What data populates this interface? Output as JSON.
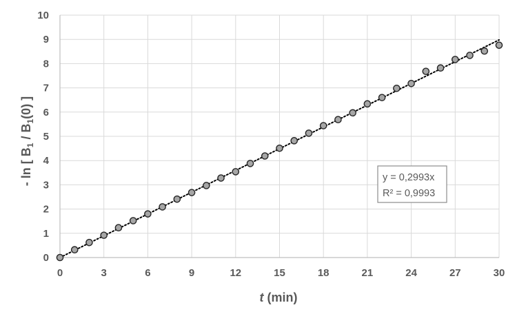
{
  "chart_data": {
    "type": "scatter",
    "title": "",
    "xlabel": {
      "italic": "t",
      "rest": " (min)"
    },
    "ylabel": {
      "p1": "- ln [ B",
      "sub1": "1",
      "p2": " / B",
      "sub2": "1",
      "p3": "(0) ]"
    },
    "xlim": [
      0,
      30
    ],
    "ylim": [
      0,
      10
    ],
    "xticks": [
      0,
      3,
      6,
      9,
      12,
      15,
      18,
      21,
      24,
      27,
      30
    ],
    "yticks": [
      0,
      1,
      2,
      3,
      4,
      5,
      6,
      7,
      8,
      9,
      10
    ],
    "grid": true,
    "series": [
      {
        "x": [
          0,
          1,
          2,
          3,
          4,
          5,
          6,
          7,
          8,
          9,
          10,
          11,
          12,
          13,
          14,
          15,
          16,
          17,
          18,
          19,
          20,
          21,
          22,
          23,
          24,
          25,
          26,
          27,
          28,
          29,
          30
        ],
        "y": [
          0,
          0.32,
          0.62,
          0.92,
          1.23,
          1.52,
          1.8,
          2.09,
          2.41,
          2.68,
          2.97,
          3.28,
          3.54,
          3.88,
          4.19,
          4.51,
          4.82,
          5.13,
          5.44,
          5.69,
          5.97,
          6.34,
          6.6,
          6.98,
          7.18,
          7.68,
          7.82,
          8.17,
          8.34,
          8.52,
          8.76
        ],
        "marker_color": "#a6a6a6",
        "marker_edge": "#262626"
      }
    ],
    "trendline": {
      "type": "linear",
      "slope": 0.2993,
      "intercept": 0,
      "style": "dotted",
      "color": "#000000"
    },
    "annotation": {
      "line1": "y = 0,2993x",
      "line2": "R² = 0,9993"
    }
  }
}
